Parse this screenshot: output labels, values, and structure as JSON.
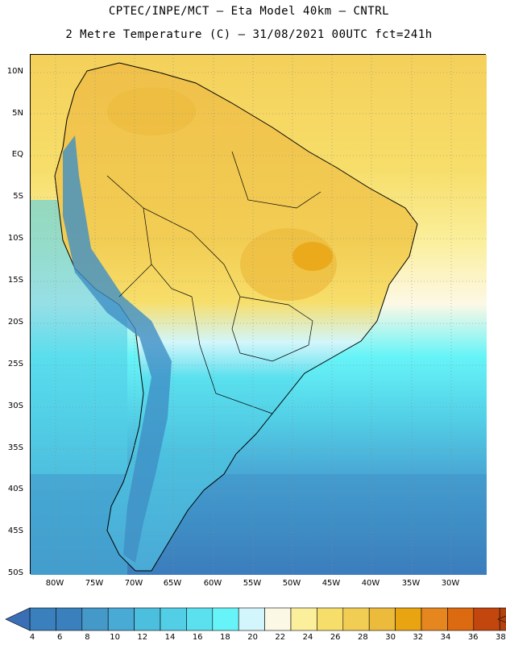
{
  "header": {
    "line1": "CPTEC/INPE/MCT –  Eta Model 40km – CNTRL",
    "line2": "2 Metre Temperature (C) – 31/08/2021 00UTC fct=241h"
  },
  "map": {
    "lat_labels": [
      "10N",
      "5N",
      "EQ",
      "5S",
      "10S",
      "15S",
      "20S",
      "25S",
      "30S",
      "35S",
      "40S",
      "45S",
      "50S"
    ],
    "lon_labels": [
      "80W",
      "75W",
      "70W",
      "65W",
      "60W",
      "55W",
      "50W",
      "45W",
      "40W",
      "35W",
      "30W"
    ],
    "grid": true,
    "land_outline_color": "#000000"
  },
  "colorbar": {
    "labels": [
      "4",
      "6",
      "8",
      "10",
      "12",
      "14",
      "16",
      "18",
      "20",
      "22",
      "24",
      "26",
      "28",
      "30",
      "32",
      "34",
      "36",
      "38"
    ],
    "colors": [
      "#3a80bd",
      "#3a80bd",
      "#4499c9",
      "#4aaad6",
      "#4cbfde",
      "#52cfe6",
      "#5ae0ee",
      "#66f4f8",
      "#d2f6fb",
      "#fcf8e6",
      "#fbef9c",
      "#f7de6a",
      "#f2cd54",
      "#ecbb3c",
      "#e9a412",
      "#e5871e",
      "#dc6a10",
      "#c2460d",
      "#b3430e"
    ],
    "left_arrow_color": "#3a6fb6",
    "right_arrow_color": "#b3430e"
  }
}
